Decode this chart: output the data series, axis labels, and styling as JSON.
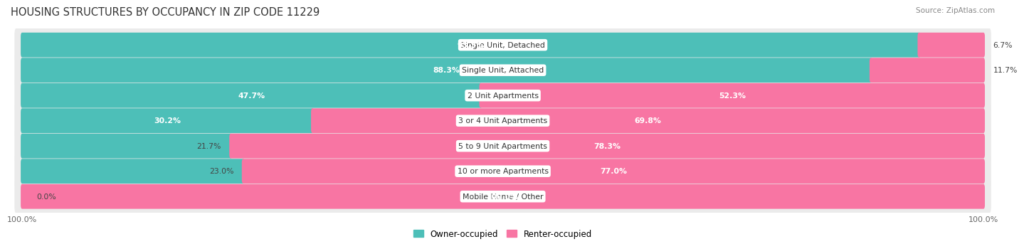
{
  "title": "HOUSING STRUCTURES BY OCCUPANCY IN ZIP CODE 11229",
  "source": "Source: ZipAtlas.com",
  "categories": [
    "Single Unit, Detached",
    "Single Unit, Attached",
    "2 Unit Apartments",
    "3 or 4 Unit Apartments",
    "5 to 9 Unit Apartments",
    "10 or more Apartments",
    "Mobile Home / Other"
  ],
  "owner_pct": [
    93.3,
    88.3,
    47.7,
    30.2,
    21.7,
    23.0,
    0.0
  ],
  "renter_pct": [
    6.7,
    11.7,
    52.3,
    69.8,
    78.3,
    77.0,
    100.0
  ],
  "owner_color": "#4DBFB8",
  "renter_color": "#F875A3",
  "bg_color": "#FFFFFF",
  "row_bg_color": "#EBEBEB",
  "title_fontsize": 10.5,
  "source_fontsize": 7.5,
  "label_fontsize": 7.8,
  "cat_fontsize": 7.8,
  "bar_height": 0.68,
  "row_sep": 0.06,
  "figsize": [
    14.06,
    3.41
  ],
  "dpi": 100,
  "xlim": [
    0,
    100
  ],
  "xtick_labels": [
    "100.0%",
    "100.0%"
  ],
  "legend_labels": [
    "Owner-occupied",
    "Renter-occupied"
  ]
}
